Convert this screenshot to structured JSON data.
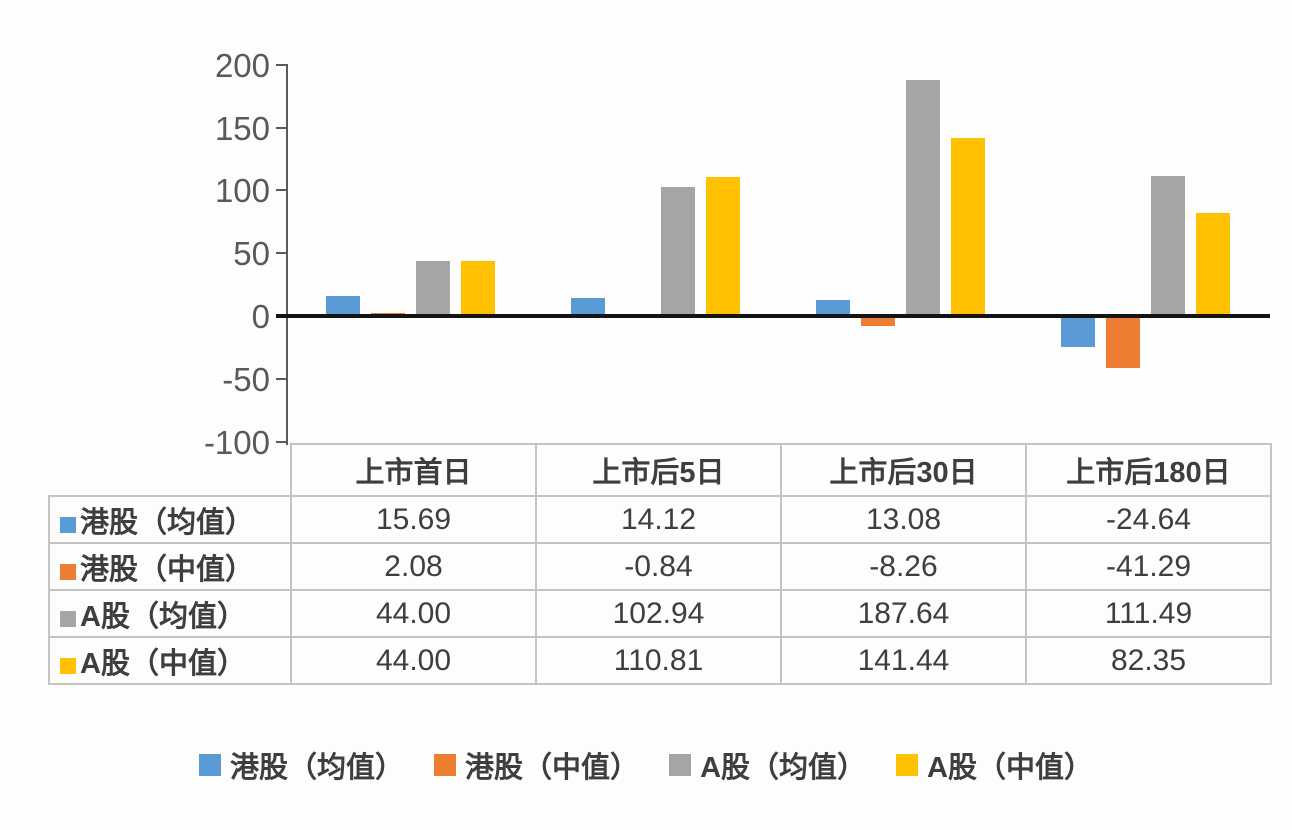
{
  "chart_data": {
    "type": "bar",
    "title": "",
    "categories": [
      "上市首日",
      "上市后5日",
      "上市后30日",
      "上市后180日"
    ],
    "series": [
      {
        "name": "港股（均值）",
        "color": "#5B9BD5",
        "values": [
          15.69,
          14.12,
          13.08,
          -24.64
        ]
      },
      {
        "name": "港股（中值）",
        "color": "#ED7D31",
        "values": [
          2.08,
          -0.84,
          -8.26,
          -41.29
        ]
      },
      {
        "name": "A股（均值）",
        "color": "#A5A5A5",
        "values": [
          44.0,
          102.94,
          187.64,
          111.49
        ]
      },
      {
        "name": "A股（中值）",
        "color": "#FFC000",
        "values": [
          44.0,
          110.81,
          141.44,
          82.35
        ]
      }
    ],
    "ylim": [
      -100,
      200
    ],
    "yticks": [
      200,
      150,
      100,
      50,
      0,
      -50,
      -100
    ],
    "grid": false,
    "legend_position": "bottom",
    "data_table_shown": true
  },
  "table": {
    "column_headers": [
      "上市首日",
      "上市后5日",
      "上市后30日",
      "上市后180日"
    ],
    "rows": [
      {
        "label": "港股（均值）",
        "swatch_color": "#5B9BD5",
        "values": [
          "15.69",
          "14.12",
          "13.08",
          "-24.64"
        ]
      },
      {
        "label": "港股（中值）",
        "swatch_color": "#ED7D31",
        "values": [
          "2.08",
          "-0.84",
          "-8.26",
          "-41.29"
        ]
      },
      {
        "label": "A股（均值）",
        "swatch_color": "#A5A5A5",
        "values": [
          "44.00",
          "102.94",
          "187.64",
          "111.49"
        ]
      },
      {
        "label": "A股（中值）",
        "swatch_color": "#FFC000",
        "values": [
          "44.00",
          "110.81",
          "141.44",
          "82.35"
        ]
      }
    ]
  },
  "legend": {
    "items": [
      {
        "label": "港股（均值）",
        "color": "#5B9BD5"
      },
      {
        "label": "港股（中值）",
        "color": "#ED7D31"
      },
      {
        "label": "A股（均值）",
        "color": "#A5A5A5"
      },
      {
        "label": "A股（中值）",
        "color": "#FFC000"
      }
    ]
  },
  "colors": {
    "axis_text": "#595959",
    "axis_line": "#5a5a5a",
    "zero_line": "#141414",
    "table_border": "#c4c4c4",
    "table_text": "#3e3e3e"
  }
}
